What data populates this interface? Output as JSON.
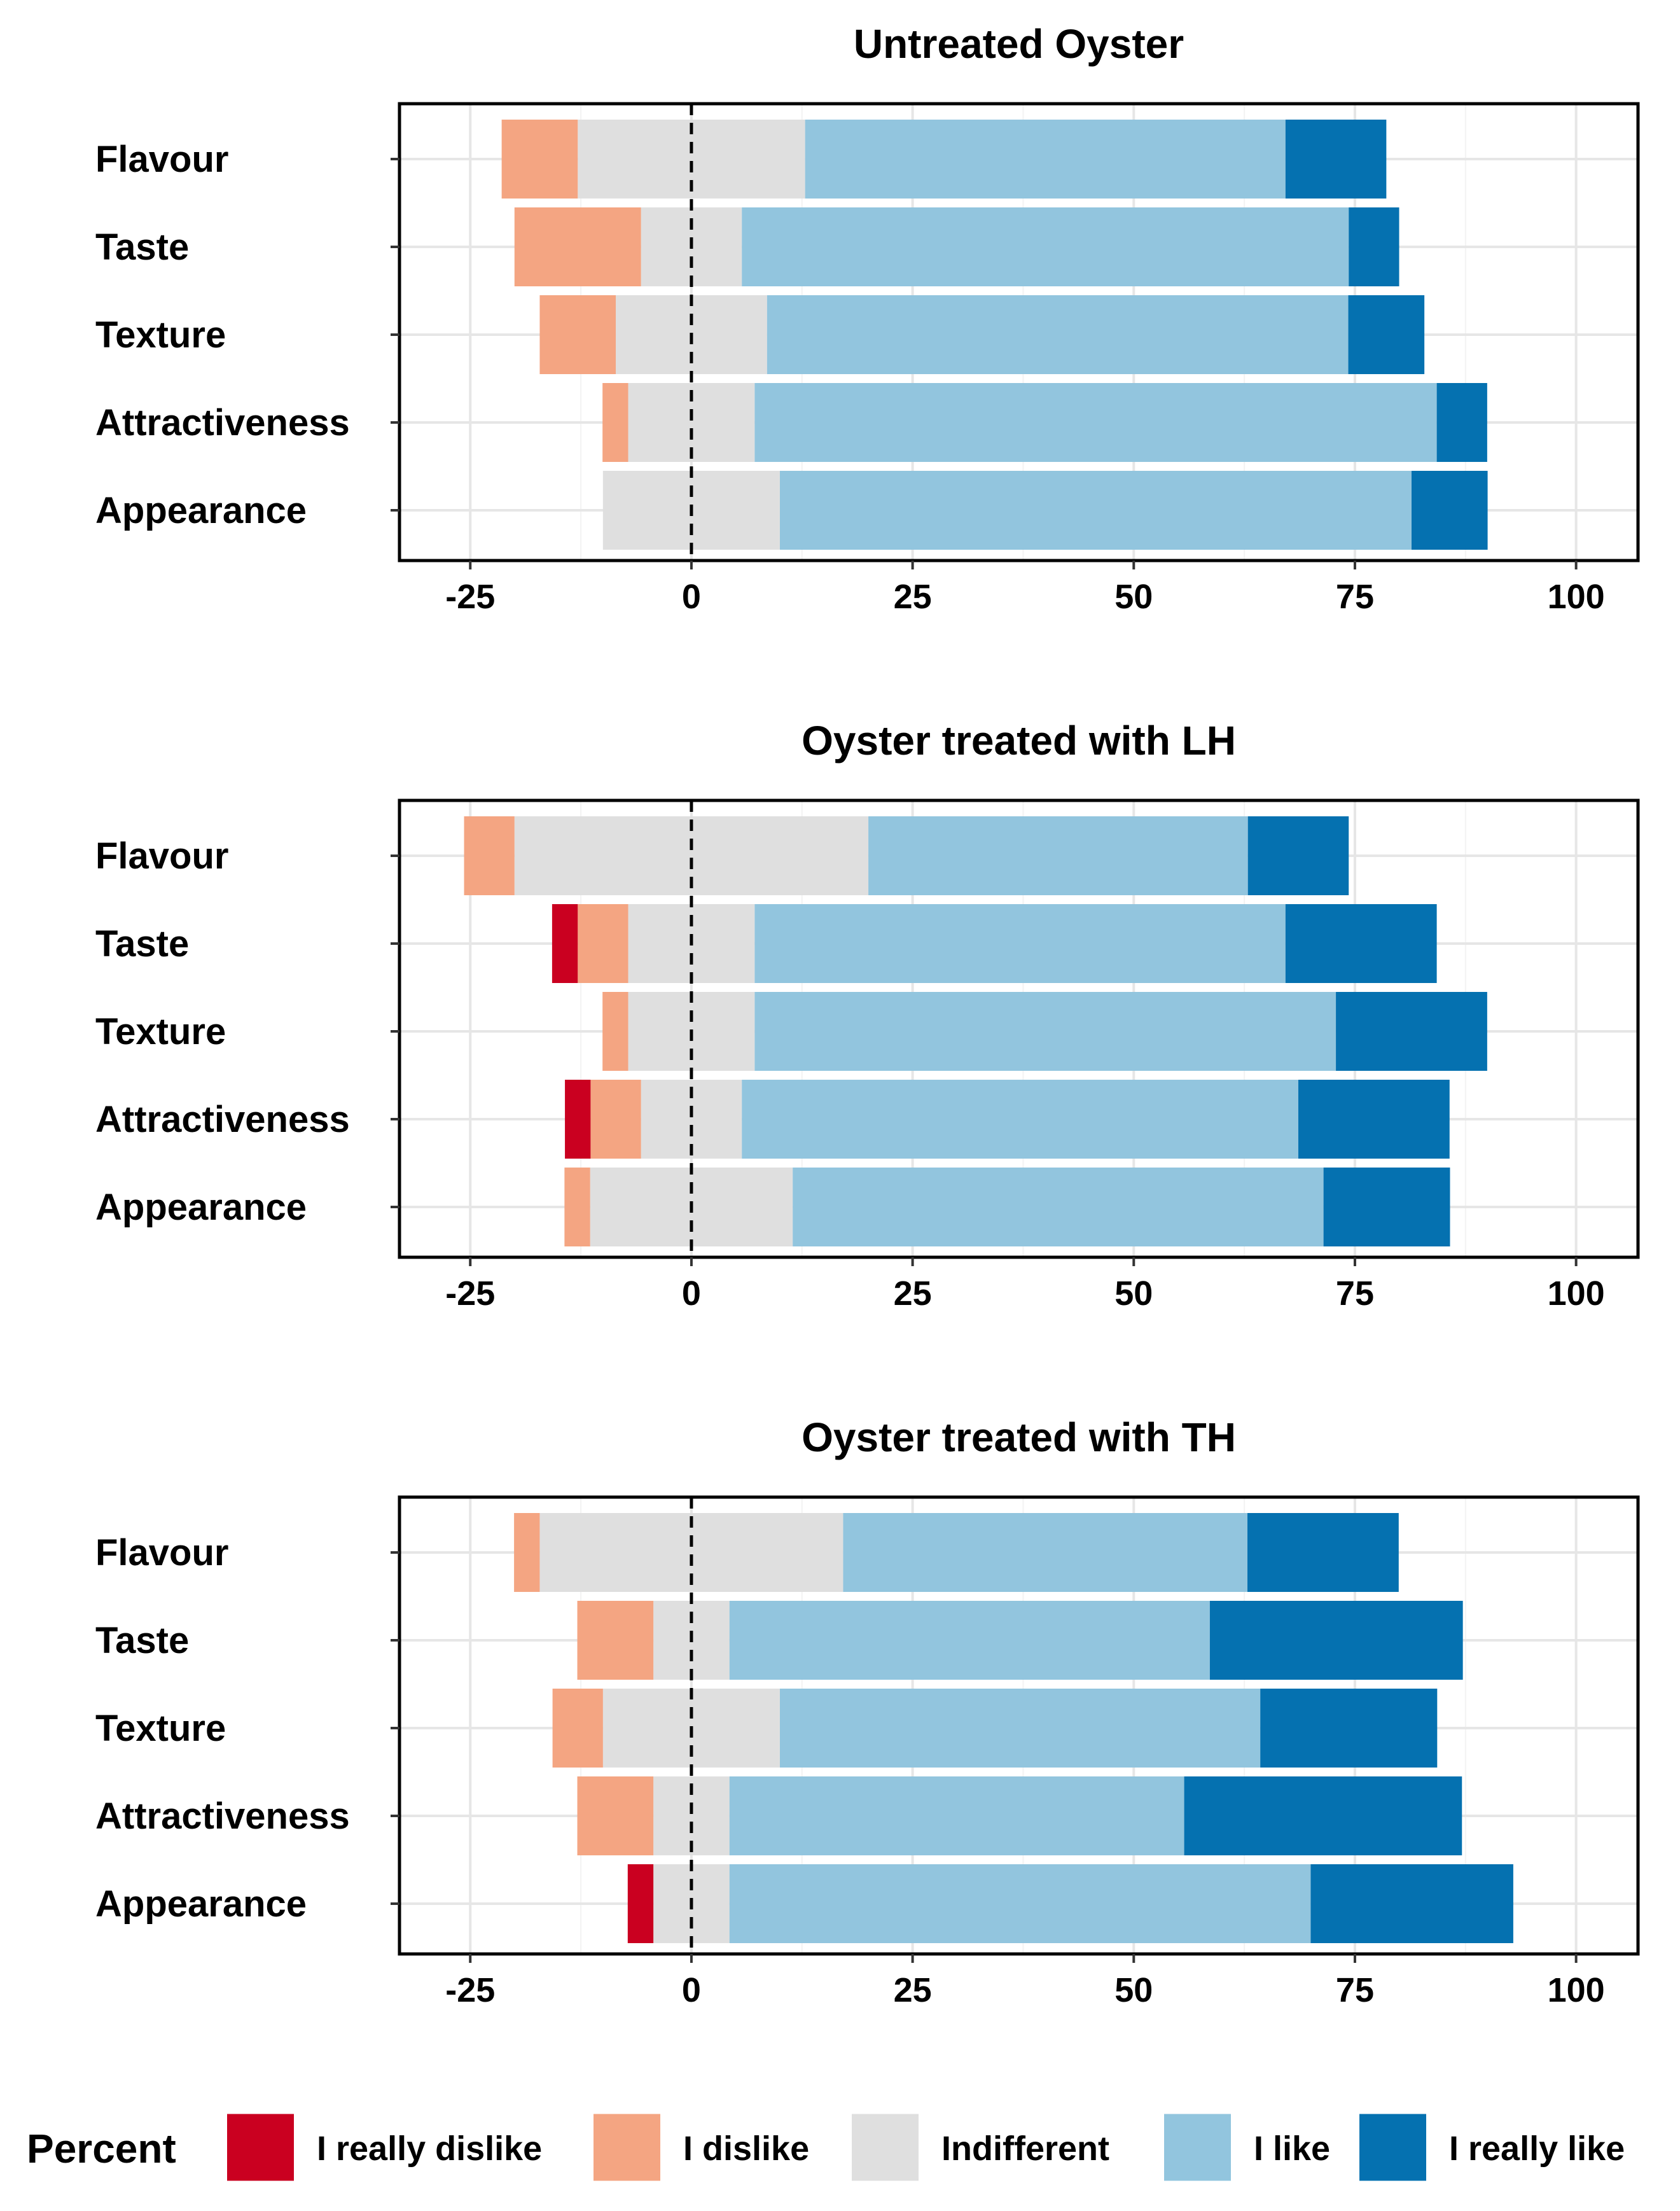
{
  "legend": {
    "title": "Percent",
    "entries": [
      {
        "key": "really_dislike",
        "label": "I really dislike",
        "color": "#CA0020"
      },
      {
        "key": "dislike",
        "label": "I dislike",
        "color": "#F4A582"
      },
      {
        "key": "indifferent",
        "label": "Indifferent",
        "color": "#DFDFDF"
      },
      {
        "key": "like",
        "label": "I like",
        "color": "#92C5DE"
      },
      {
        "key": "really_like",
        "label": "I really like",
        "color": "#0571B0"
      }
    ]
  },
  "chart_data": [
    {
      "type": "bar",
      "orientation": "horizontal",
      "stacked": "diverging",
      "title": "Untreated Oyster",
      "categories": [
        "Flavour",
        "Taste",
        "Texture",
        "Attractiveness",
        "Appearance"
      ],
      "xlim": [
        -33,
        107
      ],
      "xticks": [
        "-25",
        "0",
        "25",
        "50",
        "75",
        "100"
      ],
      "xtick_values": [
        -25,
        0,
        25,
        50,
        75,
        100
      ],
      "grid": true,
      "zero_line": "dashed",
      "series": [
        {
          "name": "I really dislike",
          "values": [
            0,
            0,
            0,
            0,
            0
          ]
        },
        {
          "name": "I dislike",
          "values": [
            8.6,
            14.3,
            8.6,
            2.9,
            0
          ]
        },
        {
          "name": "Indifferent",
          "values": [
            25.7,
            11.4,
            17.1,
            14.3,
            20.0
          ]
        },
        {
          "name": "I like",
          "values": [
            54.3,
            68.6,
            65.7,
            77.1,
            71.4
          ]
        },
        {
          "name": "I really like",
          "values": [
            11.4,
            5.7,
            8.6,
            5.7,
            8.6
          ]
        }
      ]
    },
    {
      "type": "bar",
      "orientation": "horizontal",
      "stacked": "diverging",
      "title": "Oyster treated with LH",
      "categories": [
        "Flavour",
        "Taste",
        "Texture",
        "Attractiveness",
        "Appearance"
      ],
      "xlim": [
        -33,
        107
      ],
      "xticks": [
        "-25",
        "0",
        "25",
        "50",
        "75",
        "100"
      ],
      "xtick_values": [
        -25,
        0,
        25,
        50,
        75,
        100
      ],
      "grid": true,
      "zero_line": "dashed",
      "series": [
        {
          "name": "I really dislike",
          "values": [
            0,
            2.9,
            0,
            2.9,
            0
          ]
        },
        {
          "name": "I dislike",
          "values": [
            5.7,
            5.7,
            2.9,
            5.7,
            2.9
          ]
        },
        {
          "name": "Indifferent",
          "values": [
            40.0,
            14.3,
            14.3,
            11.4,
            22.9
          ]
        },
        {
          "name": "I like",
          "values": [
            42.9,
            60.0,
            65.7,
            62.9,
            60.0
          ]
        },
        {
          "name": "I really like",
          "values": [
            11.4,
            17.1,
            17.1,
            17.1,
            14.3
          ]
        }
      ]
    },
    {
      "type": "bar",
      "orientation": "horizontal",
      "stacked": "diverging",
      "title": "Oyster treated with TH",
      "categories": [
        "Flavour",
        "Taste",
        "Texture",
        "Attractiveness",
        "Appearance"
      ],
      "xlim": [
        -33,
        107
      ],
      "xticks": [
        "-25",
        "0",
        "25",
        "50",
        "75",
        "100"
      ],
      "xtick_values": [
        -25,
        0,
        25,
        50,
        75,
        100
      ],
      "grid": true,
      "zero_line": "dashed",
      "series": [
        {
          "name": "I really dislike",
          "values": [
            0,
            0,
            0,
            0,
            2.9
          ]
        },
        {
          "name": "I dislike",
          "values": [
            2.9,
            8.6,
            5.7,
            8.6,
            0
          ]
        },
        {
          "name": "Indifferent",
          "values": [
            34.3,
            8.6,
            20.0,
            8.6,
            8.6
          ]
        },
        {
          "name": "I like",
          "values": [
            45.7,
            54.3,
            54.3,
            51.4,
            65.7
          ]
        },
        {
          "name": "I really like",
          "values": [
            17.1,
            28.6,
            20.0,
            31.4,
            22.9
          ]
        }
      ]
    }
  ]
}
